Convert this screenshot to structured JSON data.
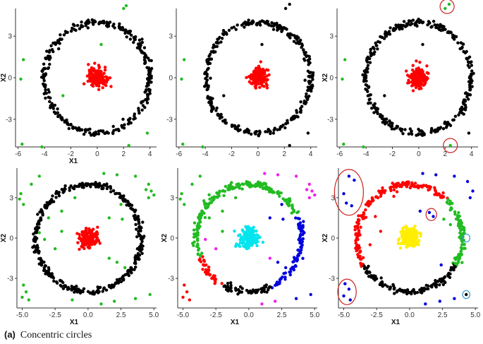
{
  "caption": {
    "letter": "(a)",
    "text": "Concentric circles"
  },
  "chart_data": [
    {
      "type": "scatter",
      "xlabel": "X1",
      "ylabel": "X2",
      "xlim": [
        -6.2,
        4.5
      ],
      "ylim": [
        -5.0,
        5.0
      ],
      "xticks": [
        "-6",
        "-4",
        "-2",
        "0",
        "2",
        "4"
      ],
      "xtick_values": [
        -6,
        -4,
        -2,
        0,
        2,
        4
      ],
      "yticks": [
        "3",
        "0",
        "-3"
      ],
      "ytick_values": [
        3,
        0,
        -3
      ],
      "grid": false,
      "colors": {
        "ring": "#000000",
        "core": "#ff0000",
        "outlier": "#22bb22"
      },
      "ring": {
        "cx": 0.0,
        "cy": 0.0,
        "radius": 4.0,
        "count": 320
      },
      "core": {
        "cx": 0.0,
        "cy": 0.0,
        "spread": 0.35,
        "count": 160
      },
      "outliers": [
        [
          2.0,
          5.0
        ],
        [
          2.2,
          5.2
        ],
        [
          0.3,
          2.4
        ],
        [
          -5.6,
          1.3
        ],
        [
          -5.8,
          -0.1
        ],
        [
          -2.6,
          -1.3
        ],
        [
          -5.7,
          -4.8
        ],
        [
          -4.2,
          -5.0
        ],
        [
          2.4,
          -4.9
        ],
        [
          3.8,
          -4.0
        ]
      ]
    },
    {
      "type": "scatter",
      "xlabel": "",
      "ylabel": "",
      "xlim": [
        -6.2,
        4.5
      ],
      "ylim": [
        -5.0,
        5.0
      ],
      "xticks": [
        "-6",
        "-4",
        "-2",
        "0",
        "2",
        "4"
      ],
      "xtick_values": [
        -6,
        -4,
        -2,
        0,
        2,
        4
      ],
      "yticks": [
        "3",
        "0",
        "-3"
      ],
      "ytick_values": [
        3,
        0,
        -3
      ],
      "grid": false,
      "colors": {
        "ring": "#000000",
        "core": "#ff0000",
        "outlier": "#000000",
        "outlier_alt": "#22bb22"
      },
      "ring": {
        "cx": 0.0,
        "cy": 0.0,
        "radius": 4.0,
        "count": 320
      },
      "core": {
        "cx": 0.0,
        "cy": 0.0,
        "spread": 0.35,
        "count": 160
      },
      "outliers": [
        [
          2.1,
          5.0
        ],
        [
          2.4,
          5.3
        ],
        [
          0.3,
          2.4
        ],
        [
          -2.6,
          -1.3
        ],
        [
          3.8,
          -4.0
        ],
        [
          2.4,
          -4.9
        ]
      ],
      "outliers_alt": [
        [
          -5.6,
          1.3
        ],
        [
          -5.8,
          -0.1
        ],
        [
          -5.7,
          -4.8
        ],
        [
          -4.2,
          -5.0
        ]
      ]
    },
    {
      "type": "scatter",
      "xlabel": "",
      "ylabel": "X2",
      "xlim": [
        -6.2,
        4.5
      ],
      "ylim": [
        -5.0,
        5.0
      ],
      "xticks": [
        "-6",
        "-4",
        "-2",
        "0",
        "2",
        "4"
      ],
      "xtick_values": [
        -6,
        -4,
        -2,
        0,
        2,
        4
      ],
      "yticks": [
        "3",
        "0",
        "-3"
      ],
      "ytick_values": [
        3,
        0,
        -3
      ],
      "grid": false,
      "colors": {
        "ring": "#000000",
        "core": "#ff0000",
        "outlier": "#000000",
        "outlier_alt": "#22bb22",
        "highlight": "#cc2222"
      },
      "ring": {
        "cx": 0.0,
        "cy": 0.0,
        "radius": 4.0,
        "count": 320
      },
      "core": {
        "cx": 0.0,
        "cy": 0.0,
        "spread": 0.35,
        "count": 160
      },
      "outliers": [
        [
          0.3,
          2.4
        ],
        [
          -2.6,
          -1.3
        ],
        [
          3.8,
          -4.0
        ]
      ],
      "outliers_alt": [
        [
          -5.6,
          1.3
        ],
        [
          -5.8,
          -0.1
        ],
        [
          -5.7,
          -4.8
        ],
        [
          -4.2,
          -5.0
        ],
        [
          2.0,
          5.0
        ],
        [
          2.3,
          5.3
        ],
        [
          2.4,
          -4.9
        ]
      ],
      "highlights": [
        [
          2.15,
          5.15
        ],
        [
          2.4,
          -4.9
        ]
      ]
    },
    {
      "type": "scatter",
      "xlabel": "X1",
      "ylabel": "X2",
      "xlim": [
        -5.4,
        5.2
      ],
      "ylim": [
        -5.2,
        5.2
      ],
      "xticks": [
        "-5.0",
        "-2.5",
        "0.0",
        "2.5",
        "5.0"
      ],
      "xtick_values": [
        -5.0,
        -2.5,
        0.0,
        2.5,
        5.0
      ],
      "yticks": [
        "3",
        "0",
        "-3"
      ],
      "ytick_values": [
        3,
        0,
        -3
      ],
      "grid": false,
      "colors": {
        "ring": "#000000",
        "core": "#ff0000",
        "outlier": "#22bb22"
      },
      "ring": {
        "cx": 0.0,
        "cy": 0.0,
        "radius": 4.0,
        "count": 380
      },
      "core": {
        "cx": 0.0,
        "cy": 0.0,
        "spread": 0.35,
        "count": 180
      },
      "outliers": [
        [
          -5.1,
          3.3
        ],
        [
          -4.9,
          2.5
        ],
        [
          -5.2,
          2.9
        ],
        [
          -3.7,
          4.6
        ],
        [
          -4.3,
          4.0
        ],
        [
          1.2,
          4.8
        ],
        [
          2.2,
          4.7
        ],
        [
          3.6,
          4.6
        ],
        [
          4.6,
          4.0
        ],
        [
          4.8,
          3.5
        ],
        [
          4.6,
          3.0
        ],
        [
          5.0,
          3.2
        ],
        [
          4.4,
          3.6
        ],
        [
          2.5,
          2.5
        ],
        [
          1.6,
          1.5
        ],
        [
          -1.0,
          3.0
        ],
        [
          -3.0,
          1.5
        ],
        [
          -2.0,
          0.5
        ],
        [
          -3.3,
          -0.1
        ],
        [
          2.6,
          1.4
        ],
        [
          1.6,
          -1.5
        ],
        [
          2.2,
          -1.8
        ],
        [
          2.8,
          -2.2
        ],
        [
          -2.5,
          -0.8
        ],
        [
          -3.7,
          0.4
        ],
        [
          -4.9,
          -3.5
        ],
        [
          -4.7,
          -4.0
        ],
        [
          -5.0,
          -4.4
        ],
        [
          -4.5,
          -4.6
        ],
        [
          1.0,
          -4.9
        ],
        [
          2.0,
          -4.7
        ],
        [
          3.6,
          -4.5
        ],
        [
          4.7,
          -4.2
        ],
        [
          -1.2,
          -4.6
        ],
        [
          -2.0,
          2.0
        ]
      ]
    },
    {
      "type": "scatter",
      "xlabel": "X1",
      "ylabel": "X2",
      "xlim": [
        -5.4,
        5.2
      ],
      "ylim": [
        -5.2,
        5.2
      ],
      "xticks": [
        "-5.0",
        "-2.5",
        "0.0",
        "2.5",
        "5.0"
      ],
      "xtick_values": [
        -5.0,
        -2.5,
        0.0,
        2.5,
        5.0
      ],
      "yticks": [
        "3",
        "0",
        "-3"
      ],
      "ytick_values": [
        3,
        0,
        -3
      ],
      "grid": false,
      "colors": {
        "top_arc": "#22bb22",
        "right_arc": "#0000dd",
        "bottom_arc": "#000000",
        "left_arc": "#ff0000",
        "core": "#00e5ee",
        "outlier_green": "#22bb22",
        "outlier_magenta": "#ee22ee",
        "outlier_red": "#ff0000",
        "outlier_blue": "#0000dd"
      },
      "ring": {
        "cx": 0.0,
        "cy": 0.0,
        "radius": 4.0,
        "count": 380
      },
      "core": {
        "cx": 0.0,
        "cy": 0.0,
        "spread": 0.35,
        "count": 180
      },
      "ring_segments": [
        {
          "color_key": "top_arc",
          "from_deg": 25,
          "to_deg": 200
        },
        {
          "color_key": "right_arc",
          "from_deg": -65,
          "to_deg": 25
        },
        {
          "color_key": "bottom_arc",
          "from_deg": -120,
          "to_deg": -65
        },
        {
          "color_key": "left_arc",
          "from_deg": 200,
          "to_deg": 240
        }
      ],
      "outliers_green": [
        [
          -5.1,
          3.3
        ],
        [
          -4.9,
          2.5
        ],
        [
          -5.2,
          2.9
        ],
        [
          -3.7,
          4.6
        ],
        [
          -4.3,
          4.0
        ],
        [
          -3.0,
          1.5
        ],
        [
          -2.0,
          0.5
        ],
        [
          -1.0,
          3.0
        ],
        [
          -2.0,
          2.0
        ]
      ],
      "outliers_magenta": [
        [
          1.2,
          4.8
        ],
        [
          2.2,
          4.7
        ],
        [
          3.6,
          4.6
        ],
        [
          4.6,
          4.0
        ],
        [
          4.8,
          3.5
        ],
        [
          4.6,
          3.0
        ],
        [
          5.0,
          3.2
        ],
        [
          4.4,
          3.6
        ],
        [
          -2.5,
          -0.8
        ],
        [
          -3.3,
          -0.1
        ],
        [
          1.0,
          -4.9
        ],
        [
          2.0,
          -4.7
        ],
        [
          1.6,
          -1.5
        ]
      ],
      "outliers_red": [
        [
          -4.9,
          -3.5
        ],
        [
          -4.7,
          -4.0
        ],
        [
          -5.0,
          -4.4
        ],
        [
          -4.5,
          -4.6
        ]
      ],
      "outliers_blue": [
        [
          2.5,
          2.5
        ],
        [
          1.6,
          1.5
        ],
        [
          2.6,
          1.4
        ],
        [
          3.6,
          -4.5
        ],
        [
          4.7,
          -4.2
        ],
        [
          2.2,
          -1.8
        ],
        [
          2.8,
          -2.2
        ]
      ]
    },
    {
      "type": "scatter",
      "xlabel": "X1",
      "ylabel": "X2",
      "xlim": [
        -5.4,
        5.2
      ],
      "ylim": [
        -5.2,
        5.2
      ],
      "xticks": [
        "-5.0",
        "-2.5",
        "0.0",
        "2.5",
        "5.0"
      ],
      "xtick_values": [
        -5.0,
        -2.5,
        0.0,
        2.5,
        5.0
      ],
      "yticks": [
        "3",
        "0",
        "-3"
      ],
      "ytick_values": [
        3,
        0,
        -3
      ],
      "grid": false,
      "colors": {
        "top_arc": "#ff0000",
        "right_arc": "#22bb22",
        "bottom_arc": "#000000",
        "core": "#ffee00",
        "outlier_blue": "#0000dd",
        "outlier_red": "#ff0000",
        "outlier_green": "#22bb22",
        "circle_red": "#cc2222",
        "circle_blue": "#3399cc"
      },
      "ring": {
        "cx": 0.0,
        "cy": 0.0,
        "radius": 4.0,
        "count": 380
      },
      "core": {
        "cx": 0.0,
        "cy": 0.0,
        "spread": 0.35,
        "count": 180
      },
      "ring_segments": [
        {
          "color_key": "top_arc",
          "from_deg": 45,
          "to_deg": 210
        },
        {
          "color_key": "right_arc",
          "from_deg": -30,
          "to_deg": 45
        },
        {
          "color_key": "bottom_arc",
          "from_deg": -150,
          "to_deg": -30
        }
      ],
      "outliers_blue": [
        [
          -4.6,
          4.6
        ],
        [
          -4.2,
          4.3
        ],
        [
          -5.0,
          3.3
        ],
        [
          -4.8,
          2.6
        ],
        [
          -4.4,
          2.4
        ],
        [
          -4.9,
          -3.4
        ],
        [
          -4.6,
          -3.8
        ],
        [
          -5.0,
          -4.3
        ],
        [
          -4.5,
          -4.6
        ],
        [
          1.5,
          1.9
        ],
        [
          1.8,
          1.6
        ],
        [
          1.0,
          4.8
        ],
        [
          2.0,
          4.7
        ],
        [
          3.4,
          4.6
        ],
        [
          4.4,
          4.2
        ],
        [
          4.8,
          3.5
        ],
        [
          4.6,
          3.0
        ],
        [
          1.2,
          -4.9
        ],
        [
          2.3,
          -4.7
        ],
        [
          3.4,
          -4.5
        ],
        [
          0.8,
          2.0
        ],
        [
          2.4,
          -2.0
        ]
      ],
      "outliers_red": [
        [
          -2.6,
          1.6
        ],
        [
          -2.2,
          0.5
        ],
        [
          -3.0,
          -0.5
        ],
        [
          -1.2,
          3.1
        ]
      ],
      "outliers_green": [
        [
          2.6,
          1.4
        ],
        [
          3.1,
          1.0
        ]
      ],
      "outliers_black": [
        [
          4.3,
          -4.2
        ]
      ],
      "highlights_red": [
        {
          "cx": -4.6,
          "cy": 3.4,
          "rx": 1.1,
          "ry": 1.7
        },
        {
          "cx": -4.75,
          "cy": -4.0,
          "rx": 0.7,
          "ry": 0.95
        },
        {
          "cx": 1.65,
          "cy": 1.75,
          "rx": 0.4,
          "ry": 0.45
        }
      ],
      "highlights_blue": [
        {
          "cx": 4.3,
          "cy": 0.0,
          "rx": 0.28,
          "ry": 0.3
        },
        {
          "cx": 4.3,
          "cy": -4.2,
          "rx": 0.28,
          "ry": 0.3
        }
      ]
    }
  ]
}
